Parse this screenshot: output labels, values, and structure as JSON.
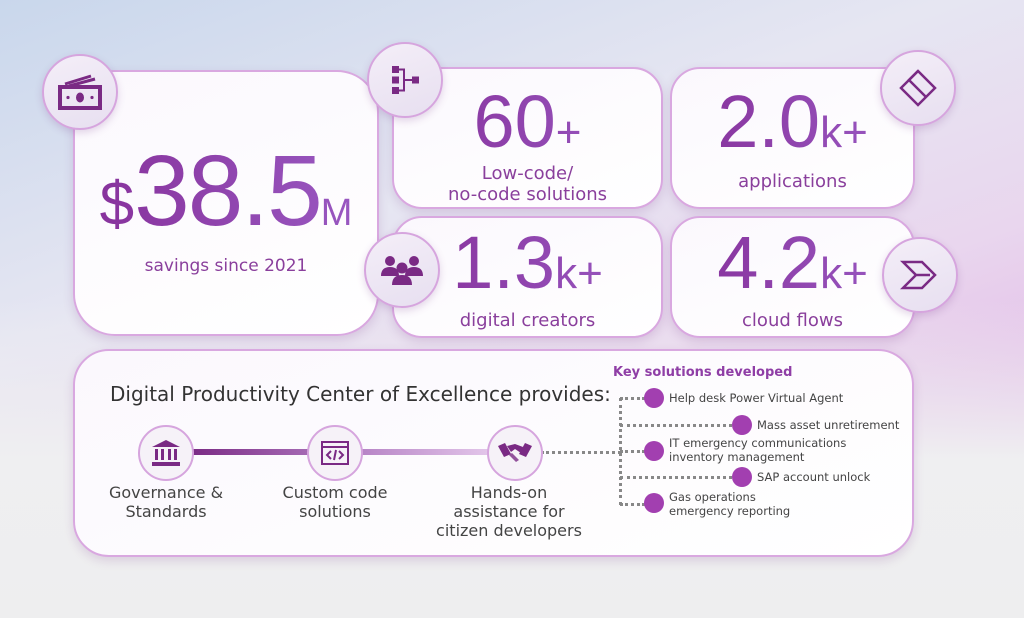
{
  "savings": {
    "currency": "$",
    "value": "38.5",
    "unit": "M",
    "label": "savings since 2021",
    "icon": "money-icon"
  },
  "stats": [
    {
      "value": "60",
      "suffix": "+",
      "label_line1": "Low-code/",
      "label_line2": "no-code solutions",
      "icon": "hierarchy-icon"
    },
    {
      "value": "2.0",
      "suffix": "k+",
      "label_line1": "applications",
      "icon": "power-apps-icon"
    },
    {
      "value": "1.3",
      "suffix": "k+",
      "label_line1": "digital creators",
      "icon": "people-icon"
    },
    {
      "value": "4.2",
      "suffix": "k+",
      "label_line1": "cloud flows",
      "icon": "power-automate-icon"
    }
  ],
  "coe": {
    "title": "Digital Productivity Center of Excellence provides:",
    "steps": [
      {
        "line1": "Governance &",
        "line2": "Standards",
        "icon": "bank-icon"
      },
      {
        "line1": "Custom code",
        "line2": "solutions",
        "icon": "code-window-icon"
      },
      {
        "line1": "Hands-on",
        "line2": "assistance for",
        "line3": "citizen developers",
        "icon": "handshake-icon"
      }
    ],
    "key_title": "Key solutions developed",
    "solutions": [
      {
        "line1": "Help desk Power Virtual Agent"
      },
      {
        "line1": "Mass asset unretirement"
      },
      {
        "line1": "IT emergency communications",
        "line2": "inventory management"
      },
      {
        "line1": "SAP account unlock"
      },
      {
        "line1": "Gas operations",
        "line2": "emergency reporting"
      }
    ]
  },
  "colors": {
    "accent": "#8f3ea6",
    "dot": "#a23fb0",
    "border": "#d9a8e0"
  }
}
